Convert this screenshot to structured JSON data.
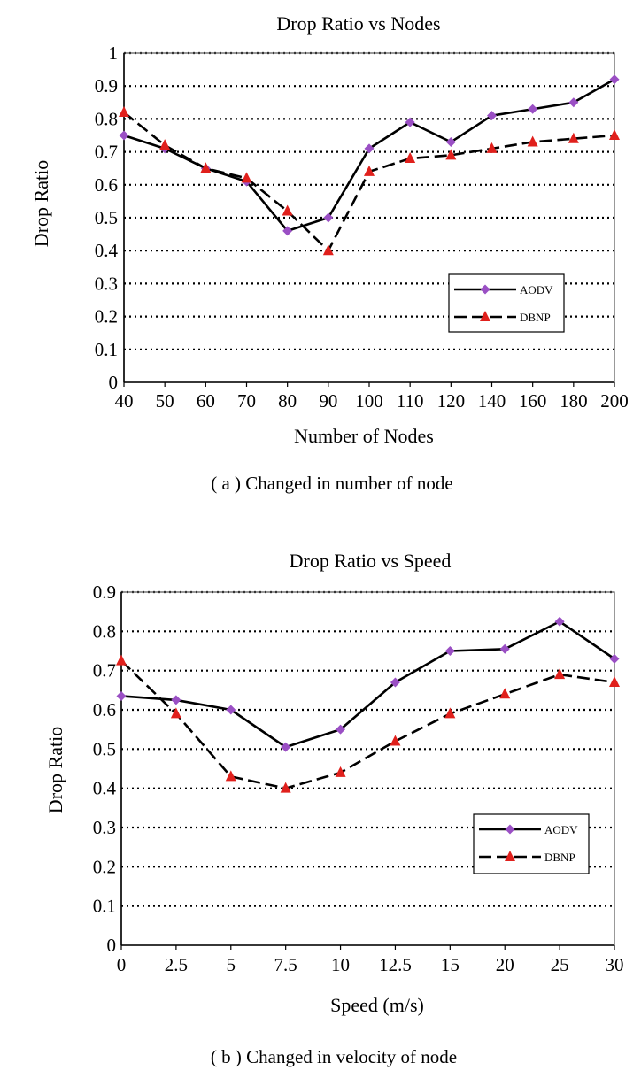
{
  "chart_data": [
    {
      "type": "line",
      "title": "Drop Ratio vs Nodes",
      "xlabel": "Number of Nodes",
      "ylabel": "Drop Ratio",
      "caption": "( a )  Changed in number of node",
      "categories": [
        "40",
        "50",
        "60",
        "70",
        "80",
        "90",
        "100",
        "110",
        "120",
        "140",
        "160",
        "180",
        "200"
      ],
      "yticks": [
        "0",
        "0.1",
        "0.2",
        "0.3",
        "0.4",
        "0.5",
        "0.6",
        "0.7",
        "0.8",
        "0.9",
        "1"
      ],
      "ylim": [
        0,
        1
      ],
      "grid": "horizontal dotted",
      "legend_position": "lower-right",
      "series": [
        {
          "name": "AODV",
          "color": "#000000",
          "marker": "diamond",
          "marker_color": "#9a4fc4",
          "dash": "solid",
          "values": [
            0.75,
            0.71,
            0.65,
            0.61,
            0.46,
            0.5,
            0.71,
            0.79,
            0.73,
            0.81,
            0.83,
            0.85,
            0.92
          ]
        },
        {
          "name": "DBNP",
          "color": "#000000",
          "marker": "triangle",
          "marker_color": "#e0201c",
          "dash": "dashed",
          "values": [
            0.82,
            0.72,
            0.65,
            0.62,
            0.52,
            0.4,
            0.64,
            0.68,
            0.69,
            0.71,
            0.73,
            0.74,
            0.75
          ]
        }
      ]
    },
    {
      "type": "line",
      "title": "Drop Ratio vs Speed",
      "xlabel": "Speed (m/s)",
      "ylabel": "Drop Ratio",
      "caption": "( b )  Changed in velocity of node",
      "categories": [
        "0",
        "2.5",
        "5",
        "7.5",
        "10",
        "12.5",
        "15",
        "20",
        "25",
        "30"
      ],
      "yticks": [
        "0",
        "0.1",
        "0.2",
        "0.3",
        "0.4",
        "0.5",
        "0.6",
        "0.7",
        "0.8",
        "0.9"
      ],
      "ylim": [
        0,
        0.9
      ],
      "grid": "horizontal dotted",
      "legend_position": "lower-right",
      "series": [
        {
          "name": "AODV",
          "color": "#000000",
          "marker": "diamond",
          "marker_color": "#9a4fc4",
          "dash": "solid",
          "values": [
            0.635,
            0.625,
            0.6,
            0.505,
            0.55,
            0.67,
            0.75,
            0.755,
            0.825,
            0.73
          ]
        },
        {
          "name": "DBNP",
          "color": "#000000",
          "marker": "triangle",
          "marker_color": "#e0201c",
          "dash": "dashed",
          "values": [
            0.725,
            0.59,
            0.43,
            0.4,
            0.44,
            0.52,
            0.59,
            0.64,
            0.69,
            0.67
          ]
        }
      ]
    }
  ]
}
